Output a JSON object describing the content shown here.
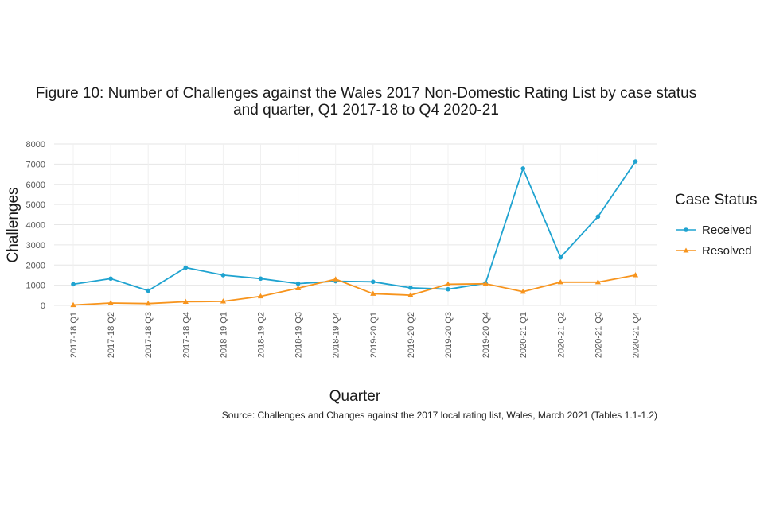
{
  "chart_data": {
    "type": "line",
    "title_line1": "Figure 10: Number of Challenges against the Wales 2017 Non-Domestic Rating List by case status",
    "title_line2": "and quarter, Q1 2017-18 to Q4 2020-21",
    "xlabel": "Quarter",
    "ylabel": "Challenges",
    "ylim": [
      0,
      8000
    ],
    "yticks": [
      "0",
      "1000",
      "2000",
      "3000",
      "4000",
      "5000",
      "6000",
      "7000",
      "8000"
    ],
    "categories": [
      "2017-18 Q1",
      "2017-18 Q2",
      "2017-18 Q3",
      "2017-18 Q4",
      "2018-19 Q1",
      "2018-19 Q2",
      "2018-19 Q3",
      "2018-19 Q4",
      "2019-20 Q1",
      "2019-20 Q2",
      "2019-20 Q3",
      "2019-20 Q4",
      "2020-21 Q1",
      "2020-21 Q2",
      "2020-21 Q3",
      "2020-21 Q4"
    ],
    "series": [
      {
        "name": "Received",
        "color": "#1fa3d0",
        "marker": "circle",
        "values": [
          1050,
          1330,
          730,
          1870,
          1500,
          1330,
          1080,
          1200,
          1170,
          870,
          800,
          1100,
          6780,
          2380,
          4400,
          7130
        ]
      },
      {
        "name": "Resolved",
        "color": "#f7941d",
        "marker": "triangle",
        "values": [
          20,
          120,
          90,
          180,
          200,
          450,
          850,
          1300,
          580,
          510,
          1050,
          1070,
          680,
          1150,
          1150,
          1500
        ]
      }
    ],
    "legend_title": "Case Status",
    "legend_position": "right",
    "grid": true,
    "source": "Source: Challenges and Changes against the 2017 local rating list, Wales, March 2021 (Tables 1.1-1.2)"
  }
}
